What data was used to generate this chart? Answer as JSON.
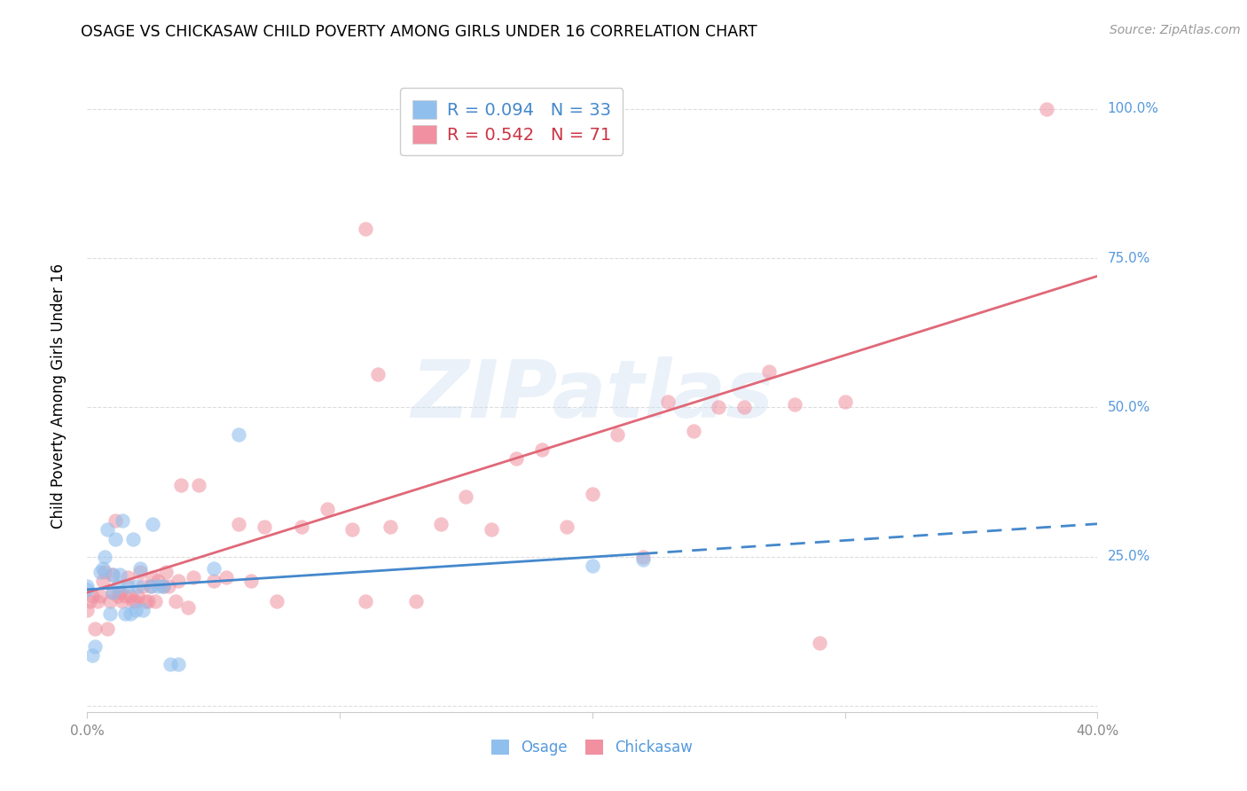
{
  "title": "OSAGE VS CHICKASAW CHILD POVERTY AMONG GIRLS UNDER 16 CORRELATION CHART",
  "source": "Source: ZipAtlas.com",
  "ylabel": "Child Poverty Among Girls Under 16",
  "xlim": [
    0.0,
    0.4
  ],
  "ylim": [
    -0.01,
    1.05
  ],
  "ytick_vals": [
    0.0,
    0.25,
    0.5,
    0.75,
    1.0
  ],
  "ytick_labels": [
    "",
    "25.0%",
    "50.0%",
    "75.0%",
    "100.0%"
  ],
  "xtick_vals": [
    0.0,
    0.1,
    0.2,
    0.3,
    0.4
  ],
  "xtick_labels": [
    "0.0%",
    "",
    "",
    "",
    "40.0%"
  ],
  "osage_R": 0.094,
  "osage_N": 33,
  "chickasaw_R": 0.542,
  "chickasaw_N": 71,
  "osage_dot_color": "#90BFEE",
  "chickasaw_dot_color": "#F090A0",
  "osage_line_color": "#4488CC",
  "chickasaw_line_color": "#E06878",
  "right_tick_color": "#5599DD",
  "legend_text_osage": "#4488CC",
  "legend_text_chickasaw": "#CC3344",
  "osage_x": [
    0.0,
    0.0,
    0.002,
    0.003,
    0.005,
    0.006,
    0.007,
    0.008,
    0.009,
    0.01,
    0.01,
    0.011,
    0.012,
    0.013,
    0.014,
    0.015,
    0.016,
    0.017,
    0.018,
    0.019,
    0.02,
    0.021,
    0.022,
    0.025,
    0.026,
    0.028,
    0.03,
    0.033,
    0.036,
    0.05,
    0.06,
    0.2,
    0.22
  ],
  "osage_y": [
    0.195,
    0.2,
    0.085,
    0.1,
    0.225,
    0.23,
    0.25,
    0.295,
    0.155,
    0.19,
    0.22,
    0.28,
    0.2,
    0.22,
    0.31,
    0.155,
    0.2,
    0.155,
    0.28,
    0.16,
    0.2,
    0.23,
    0.16,
    0.2,
    0.305,
    0.2,
    0.2,
    0.07,
    0.07,
    0.23,
    0.455,
    0.235,
    0.245
  ],
  "chickasaw_x": [
    0.0,
    0.001,
    0.002,
    0.003,
    0.004,
    0.005,
    0.006,
    0.007,
    0.008,
    0.009,
    0.01,
    0.01,
    0.011,
    0.012,
    0.013,
    0.014,
    0.015,
    0.016,
    0.017,
    0.018,
    0.019,
    0.02,
    0.021,
    0.022,
    0.023,
    0.024,
    0.025,
    0.026,
    0.027,
    0.028,
    0.03,
    0.031,
    0.032,
    0.035,
    0.036,
    0.037,
    0.04,
    0.042,
    0.044,
    0.05,
    0.055,
    0.06,
    0.065,
    0.07,
    0.075,
    0.085,
    0.095,
    0.105,
    0.11,
    0.12,
    0.13,
    0.14,
    0.15,
    0.16,
    0.17,
    0.18,
    0.19,
    0.2,
    0.21,
    0.22,
    0.23,
    0.24,
    0.11,
    0.115,
    0.25,
    0.26,
    0.27,
    0.28,
    0.29,
    0.3,
    0.38
  ],
  "chickasaw_y": [
    0.16,
    0.175,
    0.185,
    0.13,
    0.175,
    0.185,
    0.21,
    0.225,
    0.13,
    0.175,
    0.19,
    0.22,
    0.31,
    0.185,
    0.19,
    0.175,
    0.185,
    0.215,
    0.185,
    0.175,
    0.175,
    0.185,
    0.225,
    0.2,
    0.175,
    0.175,
    0.2,
    0.215,
    0.175,
    0.21,
    0.2,
    0.225,
    0.2,
    0.175,
    0.21,
    0.37,
    0.165,
    0.215,
    0.37,
    0.21,
    0.215,
    0.305,
    0.21,
    0.3,
    0.175,
    0.3,
    0.33,
    0.295,
    0.175,
    0.3,
    0.175,
    0.305,
    0.35,
    0.295,
    0.415,
    0.43,
    0.3,
    0.355,
    0.455,
    0.25,
    0.51,
    0.46,
    0.8,
    0.555,
    0.5,
    0.5,
    0.56,
    0.505,
    0.105,
    0.51,
    1.0
  ],
  "osage_line_x0": 0.0,
  "osage_line_x_solid_end": 0.22,
  "osage_line_x1": 0.4,
  "osage_line_y0": 0.195,
  "osage_line_y_solid_end": 0.255,
  "osage_line_y1": 0.305,
  "chickasaw_line_x0": 0.0,
  "chickasaw_line_x1": 0.4,
  "chickasaw_line_y0": 0.19,
  "chickasaw_line_y1": 0.72
}
